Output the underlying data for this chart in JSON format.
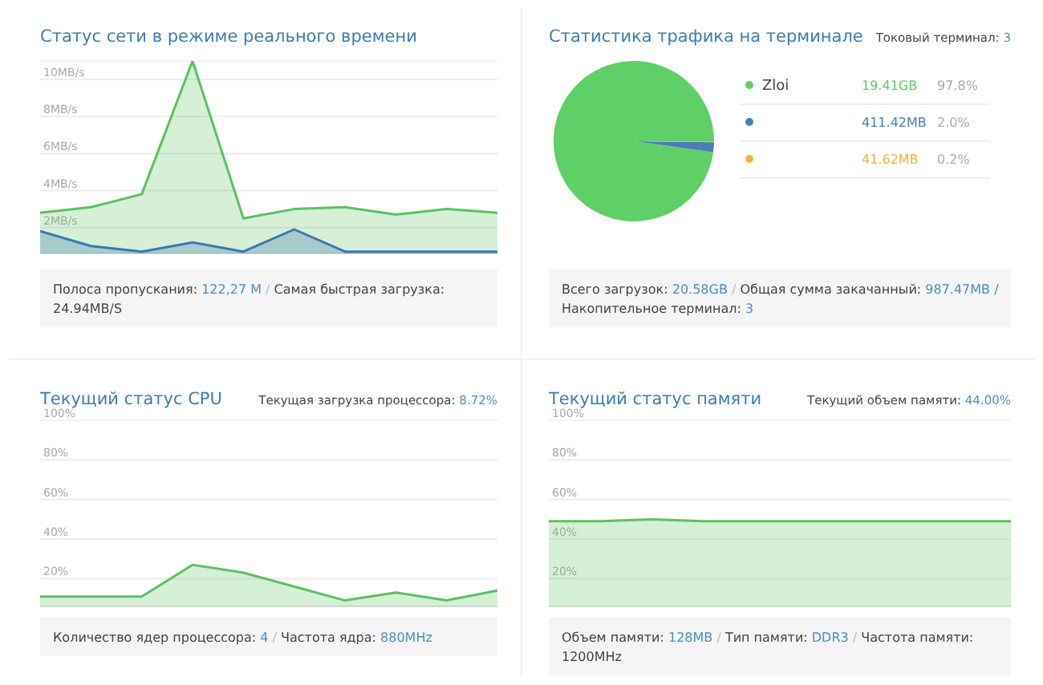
{
  "chart_data": [
    {
      "type": "area",
      "title": "Статус сети в режиме реального времени",
      "categories": [
        null,
        null,
        null,
        null,
        null,
        null,
        null,
        null,
        null,
        null
      ],
      "ylim": [
        0.6,
        11
      ],
      "yticks": [
        {
          "value": 2,
          "label": "2MB/s"
        },
        {
          "value": 4,
          "label": "4MB/s"
        },
        {
          "value": 6,
          "label": "6MB/s"
        },
        {
          "value": 8,
          "label": "8MB/s"
        },
        {
          "value": 10,
          "label": "10MB/s"
        }
      ],
      "grid": "y",
      "tick_labels": "y",
      "series": [
        {
          "color": "#5cc160",
          "values": [
            2.8,
            3.1,
            3.8,
            11,
            2.5,
            3.0,
            3.1,
            2.7,
            3.0,
            2.8
          ]
        },
        {
          "color": "#3a78b0",
          "values": [
            1.8,
            1.0,
            0.7,
            1.2,
            0.7,
            1.9,
            0.7,
            0.7,
            0.7,
            0.7
          ]
        }
      ],
      "annotations": [
        "Полоса пропускания: 122,27 M / Самая быстрая загрузка: 24.94MB/S"
      ]
    },
    {
      "type": "pie",
      "title": "Статистика трафика на терминале",
      "subtitle": "Токовый терминал: 3",
      "categories": [
        "Zloi",
        null,
        null
      ],
      "values": [
        97.8,
        2.0,
        0.2
      ],
      "colors": [
        "#5fcf68",
        "#4a7fb5",
        "#f0b43c"
      ],
      "legend": "right",
      "annotations": [
        "19.41GB",
        "411.42MB",
        "41.62MB",
        "97.8%",
        "2.0%",
        "0.2%",
        "Всего загрузок: 20.58GB / Общая сумма закачанный: 987.47MB / Накопительное терминал: 3"
      ]
    },
    {
      "type": "area",
      "title": "Текущий статус CPU",
      "subtitle": "Текущая загрузка процессора: 8.72%",
      "categories": [
        null,
        null,
        null,
        null,
        null,
        null,
        null,
        null,
        null,
        null
      ],
      "ylim": [
        6,
        100
      ],
      "yticks": [
        {
          "value": 20,
          "label": "20%"
        },
        {
          "value": 40,
          "label": "40%"
        },
        {
          "value": 60,
          "label": "60%"
        },
        {
          "value": 80,
          "label": "80%"
        },
        {
          "value": 100,
          "label": "100%"
        }
      ],
      "grid": "y",
      "tick_labels": "y",
      "series": [
        {
          "color": "#5cc160",
          "values": [
            11,
            11,
            11,
            27,
            23,
            16,
            9,
            13,
            9,
            14
          ]
        }
      ],
      "annotations": [
        "Количество ядер процессора: 4 / Частота ядра: 880MHz"
      ]
    },
    {
      "type": "area",
      "title": "Текущий статус памяти",
      "subtitle": "Текущий объем памяти: 44.00%",
      "categories": [
        null,
        null,
        null,
        null,
        null,
        null,
        null,
        null,
        null,
        null
      ],
      "ylim": [
        6,
        100
      ],
      "yticks": [
        {
          "value": 20,
          "label": "20%"
        },
        {
          "value": 40,
          "label": "40%"
        },
        {
          "value": 60,
          "label": "60%"
        },
        {
          "value": 80,
          "label": "80%"
        },
        {
          "value": 100,
          "label": "100%"
        }
      ],
      "grid": "y",
      "tick_labels": "y",
      "series": [
        {
          "color": "#5cc160",
          "values": [
            49,
            49,
            50,
            49,
            49,
            49,
            49,
            49,
            49,
            49
          ]
        }
      ],
      "annotations": [
        "Объем памяти: 128MB / Тип памяти: DDR3 / Частота памяти: 1200MHz"
      ]
    }
  ]
}
